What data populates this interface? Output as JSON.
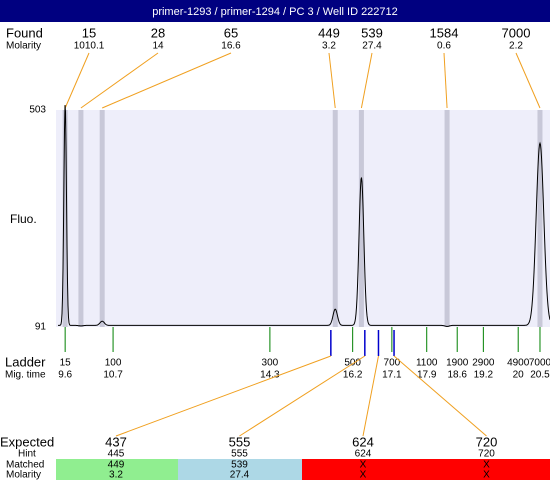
{
  "title": "primer-1293 / primer-1294 / PC 3 / Well ID 222712",
  "found": {
    "label": "Found",
    "molarity_label": "Molarity",
    "sizes": [
      15,
      28,
      65,
      449,
      539,
      1584,
      7000
    ],
    "molarity": [
      1010.1,
      14,
      16.6,
      3.2,
      27.4,
      0.6,
      2.2
    ],
    "heights": [
      515,
      93,
      102,
      125,
      375,
      92,
      440
    ]
  },
  "trace": {
    "baseline": 94
  },
  "y_axis": {
    "label": "Fluo.",
    "ylim": [
      91,
      503
    ],
    "yticks": [
      91,
      503
    ]
  },
  "x_axis": {
    "xlim": [
      9.39,
      20.73
    ]
  },
  "ladder": {
    "label": "Ladder",
    "time_label": "Mig. time",
    "sizes": [
      15,
      100,
      300,
      500,
      700,
      1100,
      1900,
      2900,
      4900,
      7000
    ],
    "times": [
      9.6,
      10.7,
      14.3,
      16.2,
      17.1,
      17.9,
      18.6,
      19.2,
      20,
      20.5
    ]
  },
  "expected": {
    "row_labels": [
      "Expected",
      "Hint",
      "Matched",
      "Molarity"
    ],
    "expected": [
      437,
      555,
      624,
      720
    ],
    "hint": [
      445,
      555,
      624,
      720
    ],
    "matched": [
      449,
      539,
      "X",
      "X"
    ],
    "molarity": [
      3.2,
      27.4,
      "X",
      "X"
    ],
    "colors": [
      "#90ee90",
      "#add8e6",
      "#ff0000",
      "#ff0000"
    ]
  }
}
